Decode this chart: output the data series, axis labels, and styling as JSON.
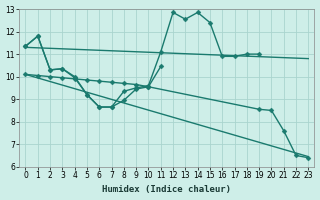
{
  "background_color": "#ceeee8",
  "grid_color": "#aad4ce",
  "line_color": "#1a7a6e",
  "xlabel": "Humidex (Indice chaleur)",
  "xlim": [
    -0.5,
    23.5
  ],
  "ylim": [
    6,
    13
  ],
  "xticks": [
    0,
    1,
    2,
    3,
    4,
    5,
    6,
    7,
    8,
    9,
    10,
    11,
    12,
    13,
    14,
    15,
    16,
    17,
    18,
    19,
    20,
    21,
    22,
    23
  ],
  "yticks": [
    6,
    7,
    8,
    9,
    10,
    11,
    12,
    13
  ],
  "series": [
    {
      "x": [
        0,
        1,
        2,
        3,
        4,
        5,
        6,
        7,
        8,
        9,
        10,
        11,
        12,
        13,
        14,
        15,
        16,
        17,
        18,
        19
      ],
      "y": [
        11.35,
        11.8,
        10.3,
        10.35,
        10.0,
        9.2,
        8.65,
        8.65,
        9.35,
        9.5,
        9.6,
        11.1,
        12.85,
        12.55,
        12.85,
        12.4,
        10.9,
        10.9,
        11.0,
        11.0
      ],
      "marker": "D",
      "markersize": 2.5,
      "linewidth": 1.0
    },
    {
      "x": [
        0,
        1,
        2,
        3,
        4,
        5,
        6,
        7,
        8,
        9,
        10,
        11
      ],
      "y": [
        11.35,
        11.8,
        10.3,
        10.35,
        9.95,
        9.2,
        8.65,
        8.65,
        8.95,
        9.45,
        9.55,
        10.45
      ],
      "marker": "D",
      "markersize": 2.5,
      "linewidth": 1.0
    },
    {
      "x": [
        0,
        23
      ],
      "y": [
        11.3,
        10.8
      ],
      "marker": null,
      "markersize": 0,
      "linewidth": 1.0
    },
    {
      "x": [
        0,
        23
      ],
      "y": [
        10.1,
        6.45
      ],
      "marker": null,
      "markersize": 0,
      "linewidth": 1.0
    },
    {
      "x": [
        0,
        1,
        2,
        3,
        4,
        5,
        6,
        7,
        8,
        9,
        10,
        19,
        20,
        21,
        22,
        23
      ],
      "y": [
        10.1,
        10.05,
        10.0,
        9.95,
        9.9,
        9.85,
        9.8,
        9.75,
        9.7,
        9.65,
        9.55,
        8.55,
        8.5,
        7.6,
        6.5,
        6.4
      ],
      "marker": "D",
      "markersize": 2.5,
      "linewidth": 1.0
    }
  ]
}
